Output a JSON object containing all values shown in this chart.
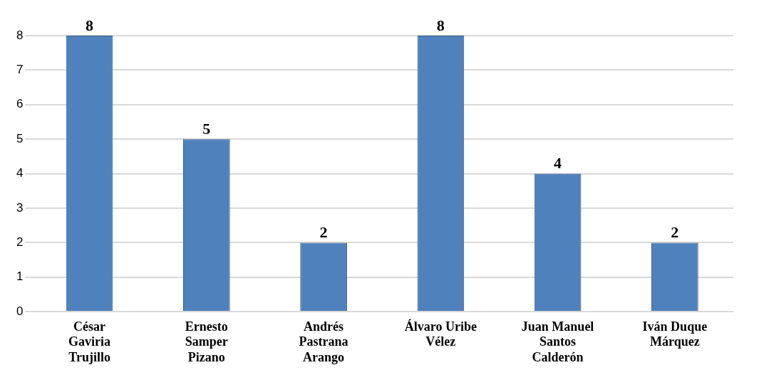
{
  "chart_data": {
    "type": "bar",
    "categories": [
      "César Gaviria Trujillo",
      "Ernesto Samper Pizano",
      "Andrés Pastrana Arango",
      "Álvaro Uribe Vélez",
      "Juan Manuel Santos Calderón",
      "Iván Duque Márquez"
    ],
    "values": [
      8,
      5,
      2,
      8,
      4,
      2
    ],
    "color": "#4f81bd",
    "ylim": [
      0,
      8
    ],
    "yticks": [
      0,
      1,
      2,
      3,
      4,
      5,
      6,
      7,
      8
    ],
    "grid": "y",
    "data_labels": true
  }
}
